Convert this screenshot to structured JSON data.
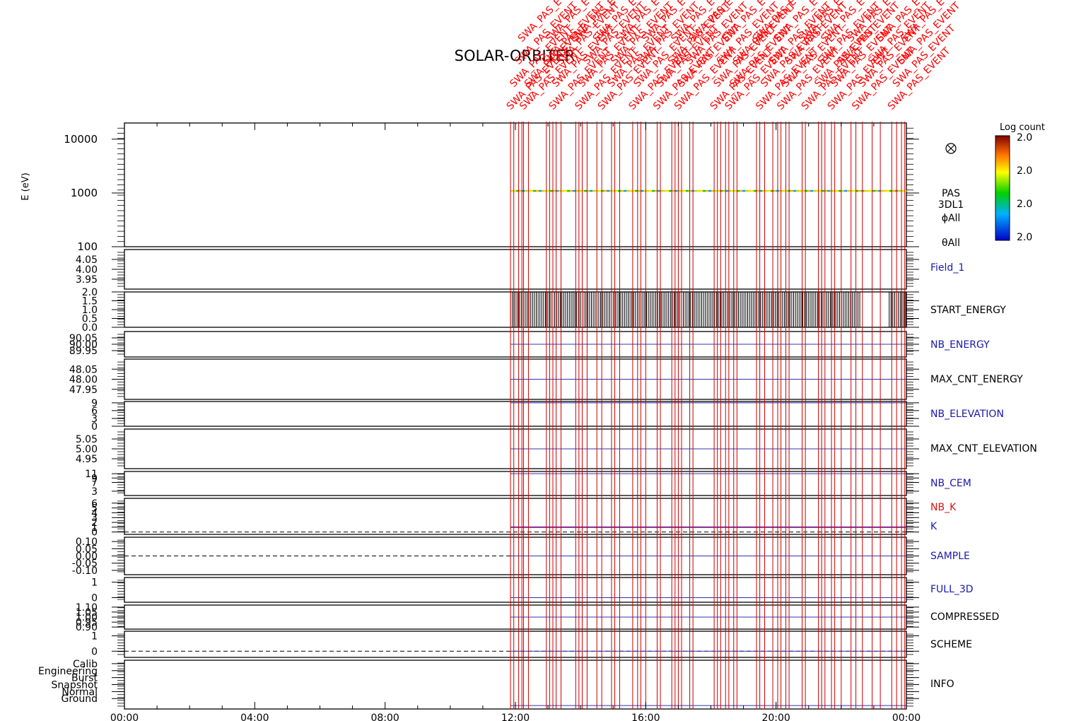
{
  "title": "SOLAR-ORBITER",
  "colors": {
    "event_line": "#cc0000",
    "event_label": "#ff0000",
    "axis": "#000000",
    "blue_label": "#1a1aaa",
    "red_label": "#dd1111",
    "purple_line": "#7a1a8a",
    "blue_line": "#3333aa"
  },
  "event_label_text": "SWA_PAS_EVENT",
  "colorbar": {
    "title": "Log count",
    "ticks": [
      "2.0",
      "2.0",
      "2.0",
      "2.0"
    ]
  },
  "chart_data": {
    "type": "line",
    "xlabel": "",
    "x_ticks": [
      "00:00",
      "04:00",
      "08:00",
      "12:00",
      "16:00",
      "20:00",
      "00:00"
    ],
    "x_range_hours": [
      0,
      24
    ],
    "data_start_hour": 11.85,
    "data_end_hour": 24.0,
    "start_energy_gap_hours": [
      22.6,
      23.45
    ],
    "event_hours": [
      11.85,
      11.95,
      12.1,
      12.2,
      12.25,
      12.4,
      12.95,
      13.05,
      13.15,
      13.25,
      13.4,
      13.85,
      13.95,
      14.05,
      14.2,
      14.5,
      14.65,
      14.95,
      15.05,
      15.2,
      15.6,
      15.75,
      15.85,
      16.0,
      16.35,
      16.45,
      16.8,
      16.9,
      17.0,
      17.1,
      17.35,
      17.45,
      18.1,
      18.2,
      18.3,
      18.45,
      18.55,
      18.7,
      18.8,
      19.4,
      19.5,
      19.65,
      19.9,
      20.05,
      20.15,
      20.3,
      20.4,
      20.8,
      20.9,
      21.3,
      21.4,
      21.5,
      21.7,
      21.8,
      22.0,
      22.3,
      22.45,
      22.65,
      22.95,
      23.2,
      23.55,
      23.7,
      23.85,
      23.95
    ],
    "panels": [
      {
        "label": "PAS\n3DL1\nϕAll\nθAll",
        "ylabel": "E (eV)",
        "yscale": "log",
        "ylim": [
          100,
          20000
        ],
        "ticks": [
          "10000",
          "1000",
          "100"
        ],
        "tick_values": [
          10000,
          1000,
          100
        ],
        "spectrogram_energy_ev": 1100
      },
      {
        "label": "Field_1",
        "label_color": "blue",
        "ylim": [
          3.9,
          4.1
        ],
        "ticks": [
          "4.05",
          "4.00",
          "3.95"
        ],
        "tick_values": [
          4.05,
          4.0,
          3.95
        ]
      },
      {
        "label": "START_ENERGY",
        "ylim": [
          0,
          2
        ],
        "ticks": [
          "2.0",
          "1.5",
          "1.0",
          "0.5",
          "0.0"
        ],
        "tick_values": [
          2.0,
          1.5,
          1.0,
          0.5,
          0.0
        ],
        "series_value_range": [
          0,
          2
        ]
      },
      {
        "label": "NB_ENERGY",
        "label_color": "blue",
        "ylim": [
          89.9,
          90.1
        ],
        "ticks": [
          "90.05",
          "90.00",
          "89.95"
        ],
        "tick_values": [
          90.05,
          90.0,
          89.95
        ],
        "series_value": 90.0
      },
      {
        "label": "MAX_CNT_ENERGY",
        "ylim": [
          47.9,
          48.1
        ],
        "ticks": [
          "48.05",
          "48.00",
          "47.95"
        ],
        "tick_values": [
          48.05,
          48.0,
          47.95
        ],
        "series_value": 48.0
      },
      {
        "label": "NB_ELEVATION",
        "label_color": "blue",
        "ylim": [
          0,
          9.5
        ],
        "ticks": [
          "9",
          "6",
          "3",
          "0"
        ],
        "tick_values": [
          9,
          6,
          3,
          0
        ],
        "series_value": 9
      },
      {
        "label": "MAX_CNT_ELEVATION",
        "ylim": [
          4.9,
          5.1
        ],
        "ticks": [
          "5.05",
          "5.00",
          "4.95"
        ],
        "tick_values": [
          5.05,
          5.0,
          4.95
        ],
        "series_value": 5.0
      },
      {
        "label": "NB_CEM",
        "label_color": "blue",
        "ylim": [
          1,
          12
        ],
        "ticks": [
          "11",
          "9",
          "7",
          "3"
        ],
        "tick_values": [
          11,
          9,
          7,
          3
        ],
        "series_value": 11
      },
      {
        "label": "NB_K",
        "label_color": "red",
        "label2": "K",
        "label2_color": "blue",
        "ylim": [
          -0.5,
          7
        ],
        "ticks": [
          "6",
          "5",
          "4",
          "3",
          "2",
          "1",
          "0"
        ],
        "tick_values": [
          6,
          5,
          4,
          3,
          2,
          1,
          0
        ],
        "series_value": 1
      },
      {
        "label": "SAMPLE",
        "label_color": "blue",
        "ylim": [
          -0.13,
          0.13
        ],
        "ticks": [
          "0.10",
          "0.05",
          "0.00",
          "-0.05",
          "-0.10"
        ],
        "tick_values": [
          0.1,
          0.05,
          0.0,
          -0.05,
          -0.1
        ],
        "series_value": 0
      },
      {
        "label": "FULL_3D",
        "label_color": "blue",
        "ylim": [
          -0.3,
          1.3
        ],
        "ticks": [
          "1",
          "0"
        ],
        "tick_values": [
          1,
          0
        ],
        "series_value": 0
      },
      {
        "label": "COMPRESSED",
        "ylim": [
          0.88,
          1.12
        ],
        "ticks": [
          "1.10",
          "1.05",
          "1.00",
          "0.95",
          "0.90"
        ],
        "tick_values": [
          1.1,
          1.05,
          1.0,
          0.95,
          0.9
        ],
        "series_value": 1.0
      },
      {
        "label": "SCHEME",
        "ylim": [
          -0.4,
          1.3
        ],
        "ticks": [
          "1",
          "0"
        ],
        "tick_values": [
          1,
          0
        ],
        "series_value": 0
      },
      {
        "label": "INFO",
        "ylim": [
          -0.5,
          6.5
        ],
        "ticks": [
          "Calib",
          "Engineering",
          "Burst",
          "Snapshot",
          "Normal",
          "Ground"
        ],
        "tick_values": [
          6,
          5,
          4,
          3,
          2,
          1
        ],
        "series_value": 0
      }
    ]
  }
}
